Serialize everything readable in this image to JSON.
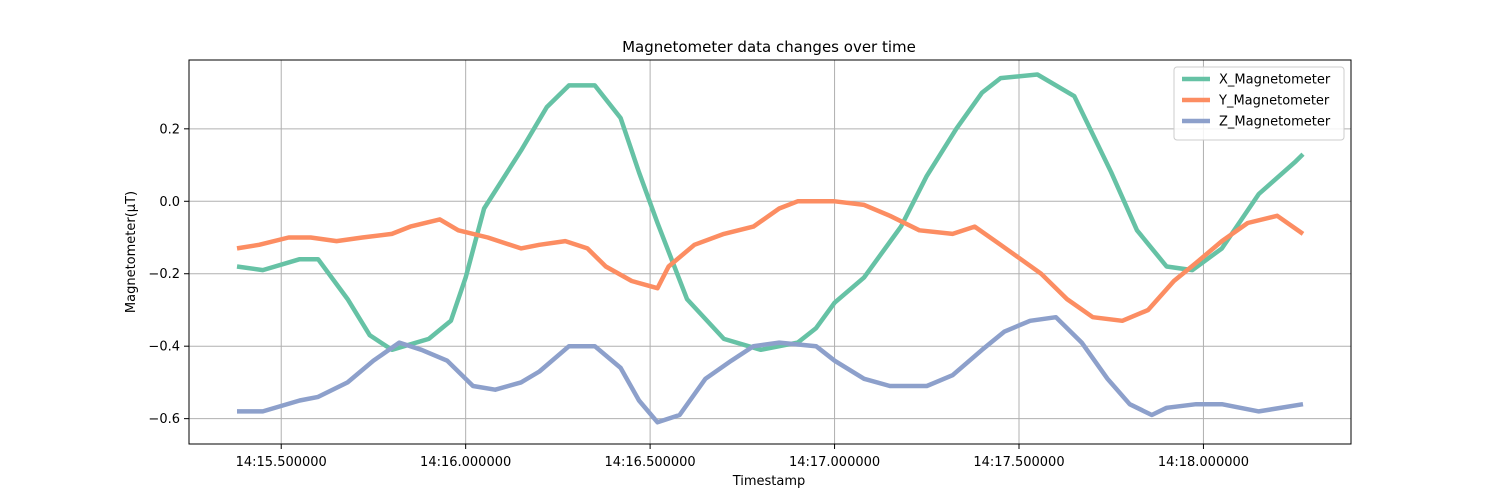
{
  "chart_data": {
    "type": "line",
    "title": "Magnetometer data changes over time",
    "xlabel": "Timestamp",
    "ylabel": "Magnetometer(μT)",
    "x_axis": {
      "type": "time",
      "min": "14:15.250000",
      "max": "14:18.400000",
      "ticks": [
        "14:15.500000",
        "14:16.000000",
        "14:16.500000",
        "14:17.000000",
        "14:17.500000",
        "14:18.000000"
      ]
    },
    "y_axis": {
      "min": -0.67,
      "max": 0.39,
      "ticks": [
        0.2,
        0.0,
        -0.2,
        -0.4,
        -0.6
      ],
      "tick_labels": [
        "0.2",
        "0.0",
        "−0.2",
        "−0.4",
        "−0.6"
      ]
    },
    "grid": true,
    "legend_position": "top-right",
    "series": [
      {
        "name": "X_Magnetometer",
        "color": "#66c2a5",
        "points": [
          [
            "14:15.380000",
            -0.18
          ],
          [
            "14:15.450000",
            -0.19
          ],
          [
            "14:15.550000",
            -0.16
          ],
          [
            "14:15.600000",
            -0.16
          ],
          [
            "14:15.680000",
            -0.27
          ],
          [
            "14:15.740000",
            -0.37
          ],
          [
            "14:15.800000",
            -0.41
          ],
          [
            "14:15.900000",
            -0.38
          ],
          [
            "14:15.960000",
            -0.33
          ],
          [
            "14:16.000000",
            -0.21
          ],
          [
            "14:16.050000",
            -0.02
          ],
          [
            "14:16.150000",
            0.14
          ],
          [
            "14:16.220000",
            0.26
          ],
          [
            "14:16.280000",
            0.32
          ],
          [
            "14:16.350000",
            0.32
          ],
          [
            "14:16.420000",
            0.23
          ],
          [
            "14:16.470000",
            0.08
          ],
          [
            "14:16.520000",
            -0.06
          ],
          [
            "14:16.600000",
            -0.27
          ],
          [
            "14:16.700000",
            -0.38
          ],
          [
            "14:16.800000",
            -0.41
          ],
          [
            "14:16.900000",
            -0.39
          ],
          [
            "14:16.950000",
            -0.35
          ],
          [
            "14:17.000000",
            -0.28
          ],
          [
            "14:17.080000",
            -0.21
          ],
          [
            "14:17.180000",
            -0.07
          ],
          [
            "14:17.250000",
            0.07
          ],
          [
            "14:17.330000",
            0.2
          ],
          [
            "14:17.400000",
            0.3
          ],
          [
            "14:17.450000",
            0.34
          ],
          [
            "14:17.550000",
            0.35
          ],
          [
            "14:17.650000",
            0.29
          ],
          [
            "14:17.750000",
            0.08
          ],
          [
            "14:17.820000",
            -0.08
          ],
          [
            "14:17.900000",
            -0.18
          ],
          [
            "14:17.970000",
            -0.19
          ],
          [
            "14:18.050000",
            -0.13
          ],
          [
            "14:18.150000",
            0.02
          ],
          [
            "14:18.250000",
            0.11
          ],
          [
            "14:18.270000",
            0.13
          ]
        ]
      },
      {
        "name": "Y_Magnetometer",
        "color": "#fc8d62",
        "points": [
          [
            "14:15.380000",
            -0.13
          ],
          [
            "14:15.440000",
            -0.12
          ],
          [
            "14:15.520000",
            -0.1
          ],
          [
            "14:15.580000",
            -0.1
          ],
          [
            "14:15.650000",
            -0.11
          ],
          [
            "14:15.720000",
            -0.1
          ],
          [
            "14:15.800000",
            -0.09
          ],
          [
            "14:15.850000",
            -0.07
          ],
          [
            "14:15.930000",
            -0.05
          ],
          [
            "14:15.980000",
            -0.08
          ],
          [
            "14:16.060000",
            -0.1
          ],
          [
            "14:16.150000",
            -0.13
          ],
          [
            "14:16.200000",
            -0.12
          ],
          [
            "14:16.270000",
            -0.11
          ],
          [
            "14:16.330000",
            -0.13
          ],
          [
            "14:16.380000",
            -0.18
          ],
          [
            "14:16.450000",
            -0.22
          ],
          [
            "14:16.520000",
            -0.24
          ],
          [
            "14:16.550000",
            -0.18
          ],
          [
            "14:16.620000",
            -0.12
          ],
          [
            "14:16.700000",
            -0.09
          ],
          [
            "14:16.780000",
            -0.07
          ],
          [
            "14:16.850000",
            -0.02
          ],
          [
            "14:16.900000",
            -0.0
          ],
          [
            "14:17.000000",
            -0.0
          ],
          [
            "14:17.080000",
            -0.01
          ],
          [
            "14:17.150000",
            -0.04
          ],
          [
            "14:17.230000",
            -0.08
          ],
          [
            "14:17.320000",
            -0.09
          ],
          [
            "14:17.380000",
            -0.07
          ],
          [
            "14:17.450000",
            -0.12
          ],
          [
            "14:17.560000",
            -0.2
          ],
          [
            "14:17.630000",
            -0.27
          ],
          [
            "14:17.700000",
            -0.32
          ],
          [
            "14:17.780000",
            -0.33
          ],
          [
            "14:17.850000",
            -0.3
          ],
          [
            "14:17.920000",
            -0.22
          ],
          [
            "14:17.980000",
            -0.17
          ],
          [
            "14:18.050000",
            -0.11
          ],
          [
            "14:18.120000",
            -0.06
          ],
          [
            "14:18.200000",
            -0.04
          ],
          [
            "14:18.270000",
            -0.09
          ]
        ]
      },
      {
        "name": "Z_Magnetometer",
        "color": "#8da0cb",
        "points": [
          [
            "14:15.380000",
            -0.58
          ],
          [
            "14:15.450000",
            -0.58
          ],
          [
            "14:15.550000",
            -0.55
          ],
          [
            "14:15.600000",
            -0.54
          ],
          [
            "14:15.680000",
            -0.5
          ],
          [
            "14:15.750000",
            -0.44
          ],
          [
            "14:15.820000",
            -0.39
          ],
          [
            "14:15.880000",
            -0.41
          ],
          [
            "14:15.950000",
            -0.44
          ],
          [
            "14:16.020000",
            -0.51
          ],
          [
            "14:16.080000",
            -0.52
          ],
          [
            "14:16.150000",
            -0.5
          ],
          [
            "14:16.200000",
            -0.47
          ],
          [
            "14:16.280000",
            -0.4
          ],
          [
            "14:16.350000",
            -0.4
          ],
          [
            "14:16.420000",
            -0.46
          ],
          [
            "14:16.470000",
            -0.55
          ],
          [
            "14:16.520000",
            -0.61
          ],
          [
            "14:16.580000",
            -0.59
          ],
          [
            "14:16.650000",
            -0.49
          ],
          [
            "14:16.720000",
            -0.44
          ],
          [
            "14:16.780000",
            -0.4
          ],
          [
            "14:16.850000",
            -0.39
          ],
          [
            "14:16.950000",
            -0.4
          ],
          [
            "14:17.000000",
            -0.44
          ],
          [
            "14:17.080000",
            -0.49
          ],
          [
            "14:17.150000",
            -0.51
          ],
          [
            "14:17.250000",
            -0.51
          ],
          [
            "14:17.320000",
            -0.48
          ],
          [
            "14:17.400000",
            -0.41
          ],
          [
            "14:17.460000",
            -0.36
          ],
          [
            "14:17.530000",
            -0.33
          ],
          [
            "14:17.600000",
            -0.32
          ],
          [
            "14:17.670000",
            -0.39
          ],
          [
            "14:17.740000",
            -0.49
          ],
          [
            "14:17.800000",
            -0.56
          ],
          [
            "14:17.860000",
            -0.59
          ],
          [
            "14:17.900000",
            -0.57
          ],
          [
            "14:17.980000",
            -0.56
          ],
          [
            "14:18.050000",
            -0.56
          ],
          [
            "14:18.150000",
            -0.58
          ],
          [
            "14:18.270000",
            -0.56
          ]
        ]
      }
    ]
  }
}
